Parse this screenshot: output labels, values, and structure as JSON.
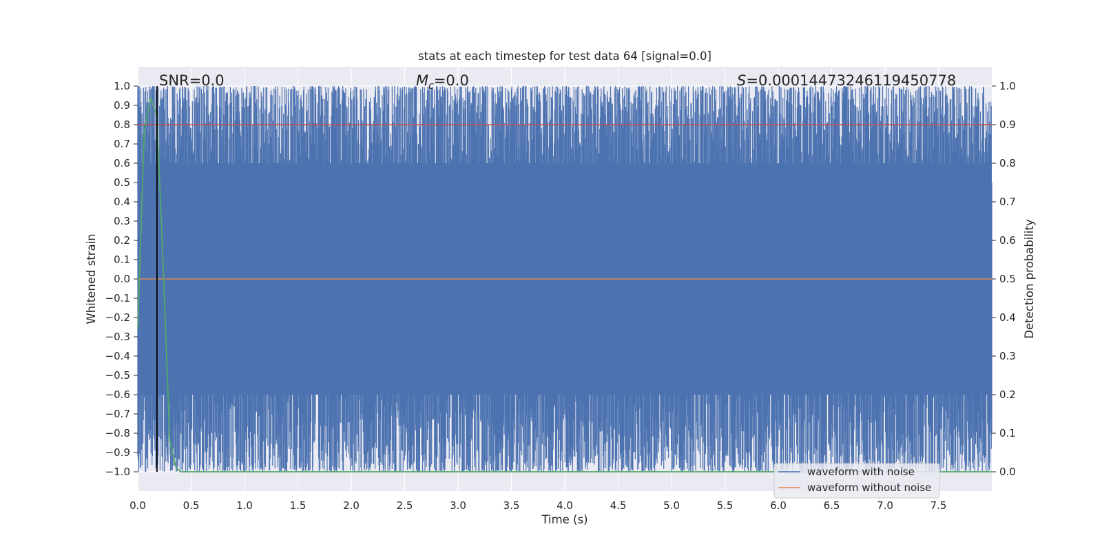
{
  "chart_data": {
    "type": "line",
    "title": "stats at each timestep for test data 64 [signal=0.0]",
    "xlabel": "Time (s)",
    "ylabel_left": "Whitened strain",
    "ylabel_right": "Detection probability",
    "xlim": [
      0.0,
      8.0
    ],
    "ylim_left": [
      -1.1,
      1.1
    ],
    "ylim_right": [
      -0.05,
      1.05
    ],
    "xticks": [
      "0.0",
      "0.5",
      "1.0",
      "1.5",
      "2.0",
      "2.5",
      "3.0",
      "3.5",
      "4.0",
      "4.5",
      "5.0",
      "5.5",
      "6.0",
      "6.5",
      "7.0",
      "7.5"
    ],
    "yticks_left": [
      "−1.0",
      "−0.9",
      "−0.8",
      "−0.7",
      "−0.6",
      "−0.5",
      "−0.4",
      "−0.3",
      "−0.2",
      "−0.1",
      "0.0",
      "0.1",
      "0.2",
      "0.3",
      "0.4",
      "0.5",
      "0.6",
      "0.7",
      "0.8",
      "0.9",
      "1.0"
    ],
    "yticks_right": [
      "0.0",
      "0.1",
      "0.2",
      "0.3",
      "0.4",
      "0.5",
      "0.6",
      "0.7",
      "0.8",
      "0.9",
      "1.0"
    ],
    "grid": true,
    "legend_position": "lower right",
    "annotations": {
      "snr": "SNR=0.0",
      "mc_symbol": "M",
      "mc_sub": "c",
      "mc_value": "=0.0",
      "s_symbol": "S",
      "s_value": "=0.00014473246119450778"
    },
    "series": [
      {
        "name": "waveform with noise",
        "axis": "left",
        "color": "#4c72b0",
        "description_values": "dense noise spanning approximately -1.0 to 1.0 across 0 to 8 s",
        "envelope_low_min": -1.0,
        "envelope_high_max": 1.0
      },
      {
        "name": "waveform without noise",
        "axis": "left",
        "color": "#dd8452",
        "x": [
          0.0,
          8.0
        ],
        "y": [
          0.0,
          0.0
        ]
      },
      {
        "axis": "right",
        "color": "#c44e52",
        "x": [
          0.0,
          8.0
        ],
        "y": [
          0.9,
          0.9
        ]
      },
      {
        "axis": "right",
        "color": "#55a868",
        "x": [
          0.0,
          0.06,
          0.12,
          0.18,
          0.24,
          0.3,
          0.36,
          0.4,
          1.0,
          2.0,
          3.0,
          4.0,
          5.0,
          6.0,
          7.0,
          8.0
        ],
        "y": [
          0.37,
          0.88,
          0.97,
          0.92,
          0.52,
          0.08,
          0.01,
          0.0,
          0.0,
          0.0,
          0.0,
          0.0,
          0.0,
          0.0,
          0.0,
          0.0
        ]
      }
    ],
    "vertical_marker": {
      "x": 0.18,
      "color": "#000000"
    }
  }
}
